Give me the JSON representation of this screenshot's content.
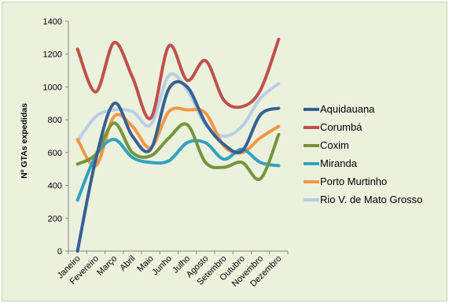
{
  "chart_data": {
    "type": "line",
    "title": "",
    "xlabel": "",
    "ylabel": "Nº GTAs expedidas",
    "ylim": [
      0,
      1400
    ],
    "yticks": [
      0,
      200,
      400,
      600,
      800,
      1000,
      1200,
      1400
    ],
    "grid": false,
    "legend_position": "right",
    "categories": [
      "Janeiro",
      "Fevereiro",
      "Março",
      "Abril",
      "Maio",
      "Junho",
      "Julho",
      "Agosto",
      "Setembro",
      "Outubro",
      "Novembro",
      "Dezembro"
    ],
    "series": [
      {
        "name": "Aquidauana",
        "color": "#376092",
        "values": [
          0,
          560,
          900,
          700,
          620,
          990,
          1000,
          780,
          650,
          610,
          830,
          870
        ]
      },
      {
        "name": "Corumbá",
        "color": "#c0504d",
        "values": [
          1230,
          970,
          1270,
          1060,
          810,
          1250,
          1040,
          1160,
          920,
          880,
          980,
          1290
        ]
      },
      {
        "name": "Coxim",
        "color": "#77933c",
        "values": [
          530,
          590,
          780,
          600,
          580,
          690,
          770,
          540,
          510,
          540,
          440,
          710
        ]
      },
      {
        "name": "Miranda",
        "color": "#31a2c0",
        "values": [
          310,
          580,
          680,
          570,
          540,
          550,
          660,
          660,
          560,
          620,
          540,
          520
        ]
      },
      {
        "name": "Porto Murtinho",
        "color": "#f79646",
        "values": [
          680,
          520,
          820,
          760,
          630,
          850,
          860,
          840,
          640,
          600,
          690,
          760
        ]
      },
      {
        "name": "Rio V. de Mato Grosso",
        "color": "#b9cde5",
        "values": [
          670,
          820,
          860,
          850,
          770,
          1070,
          980,
          770,
          700,
          760,
          930,
          1020
        ]
      }
    ]
  }
}
